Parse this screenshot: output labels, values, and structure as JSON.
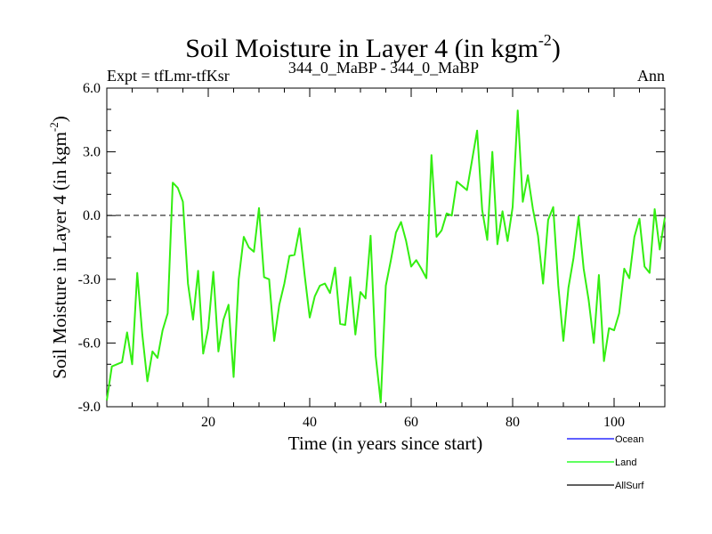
{
  "chart_data": {
    "type": "line",
    "title": "Soil Moisture in Layer 4 (in kgm",
    "title_sup": "-2",
    "title_close": ")",
    "subtitle_left": "Expt = tfLmr-tfKsr",
    "subtitle_center": "344_0_MaBP - 344_0_MaBP",
    "subtitle_right": "Ann",
    "xlabel": "Time (in years since start)",
    "ylabel": "Soil Moisture in Layer 4 (in kgm",
    "ylabel_sup": "-2",
    "ylabel_close": ")",
    "xlim": [
      0,
      110
    ],
    "ylim": [
      -9,
      6
    ],
    "xticks": [
      20,
      40,
      60,
      80,
      100
    ],
    "xtick_labels": [
      "20",
      "40",
      "60",
      "80",
      "100"
    ],
    "yticks": [
      6,
      3,
      0,
      -3,
      -6,
      -9
    ],
    "ytick_labels": [
      "6.0",
      "3.0",
      "0.0",
      "-3.0",
      "-6.0",
      "-9.0"
    ],
    "zero_line": true,
    "legend": [
      {
        "name": "Ocean",
        "color": "#0000ff"
      },
      {
        "name": "Land",
        "color": "#00ff00"
      },
      {
        "name": "AllSurf",
        "color": "#000000"
      }
    ],
    "series": [
      {
        "name": "Land",
        "color": "#33ee11",
        "x": [
          0,
          1,
          2,
          3,
          4,
          5,
          6,
          7,
          8,
          9,
          10,
          11,
          12,
          13,
          14,
          15,
          16,
          17,
          18,
          19,
          20,
          21,
          22,
          23,
          24,
          25,
          26,
          27,
          28,
          29,
          30,
          31,
          32,
          33,
          34,
          35,
          36,
          37,
          38,
          39,
          40,
          41,
          42,
          43,
          44,
          45,
          46,
          47,
          48,
          49,
          50,
          51,
          52,
          53,
          54,
          55,
          56,
          57,
          58,
          59,
          60,
          61,
          62,
          63,
          64,
          65,
          66,
          67,
          68,
          69,
          70,
          71,
          72,
          73,
          74,
          75,
          76,
          77,
          78,
          79,
          80,
          81,
          82,
          83,
          84,
          85,
          86,
          87,
          88,
          89,
          90,
          91,
          92,
          93,
          94,
          95,
          96,
          97,
          98,
          99,
          100,
          101,
          102,
          103,
          104,
          105,
          106,
          107,
          108,
          109,
          110
        ],
        "values": [
          -8.7,
          -7.1,
          -7.0,
          -6.9,
          -5.5,
          -7.0,
          -2.7,
          -5.6,
          -7.8,
          -6.4,
          -6.7,
          -5.4,
          -4.6,
          1.55,
          1.3,
          0.65,
          -3.2,
          -4.9,
          -2.6,
          -6.5,
          -5.3,
          -2.65,
          -6.4,
          -4.9,
          -4.2,
          -7.6,
          -3.0,
          -1.0,
          -1.5,
          -1.7,
          0.35,
          -2.9,
          -3.0,
          -5.9,
          -4.2,
          -3.2,
          -1.9,
          -1.85,
          -0.6,
          -2.8,
          -4.8,
          -3.8,
          -3.3,
          -3.2,
          -3.65,
          -2.45,
          -5.1,
          -5.15,
          -2.9,
          -5.6,
          -3.6,
          -3.9,
          -0.95,
          -6.6,
          -8.8,
          -3.3,
          -2.1,
          -0.8,
          -0.3,
          -1.2,
          -2.4,
          -2.1,
          -2.5,
          -2.95,
          2.85,
          -1.0,
          -0.7,
          0.1,
          0.0,
          1.6,
          1.4,
          1.2,
          2.6,
          4.0,
          0.25,
          -1.15,
          3.0,
          -1.35,
          0.2,
          -1.2,
          0.4,
          4.95,
          0.65,
          1.9,
          0.3,
          -0.95,
          -3.2,
          -0.2,
          0.4,
          -3.3,
          -5.9,
          -3.4,
          -2.0,
          -0.05,
          -2.5,
          -4.0,
          -6.0,
          -2.8,
          -6.85,
          -5.3,
          -5.4,
          -4.6,
          -2.5,
          -2.95,
          -1.0,
          -0.15,
          -2.4,
          -2.7,
          0.3,
          -1.6,
          -0.1
        ]
      }
    ]
  }
}
